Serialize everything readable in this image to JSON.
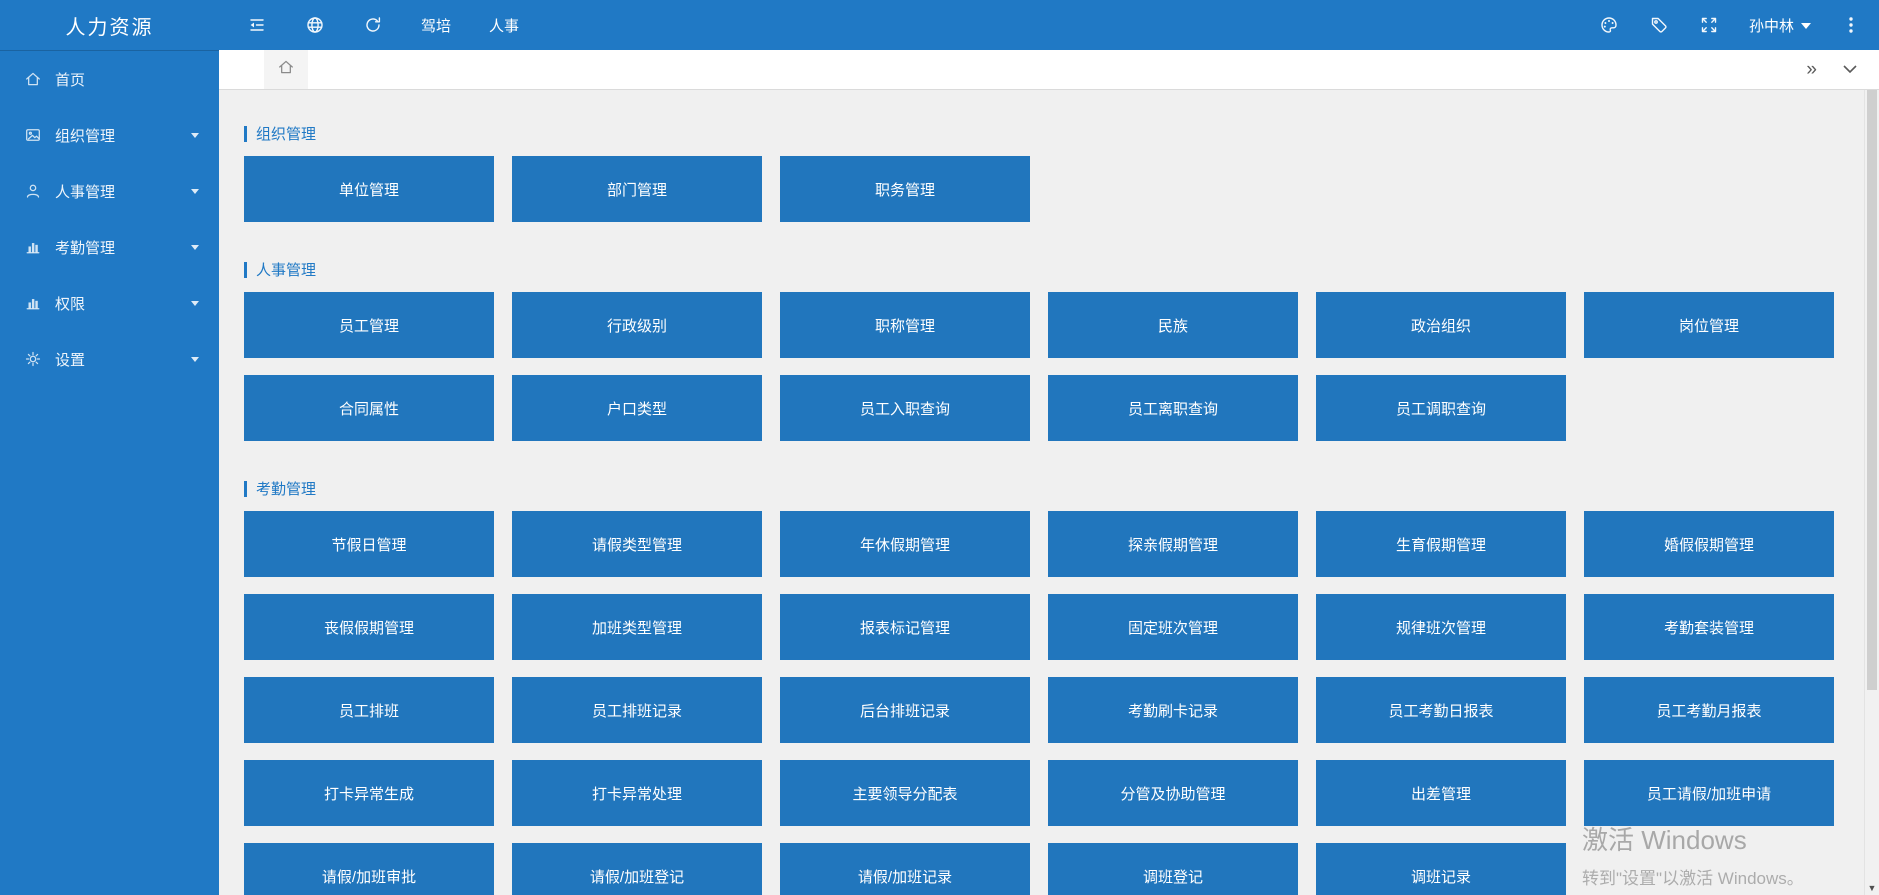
{
  "app": {
    "title": "人力资源"
  },
  "colors": {
    "primary": "#2079c5",
    "tile": "#2176bd",
    "content_bg": "#f0f0f0"
  },
  "topbar": {
    "left_icons": [
      "collapse",
      "globe",
      "refresh"
    ],
    "nav_items": [
      "驾培",
      "人事"
    ],
    "right_icons": [
      "palette",
      "tag",
      "fullscreen"
    ],
    "user": "孙中林"
  },
  "sidebar": {
    "items": [
      {
        "id": "home",
        "label": "首页",
        "icon": "home",
        "has_children": false
      },
      {
        "id": "org",
        "label": "组织管理",
        "icon": "image",
        "has_children": true
      },
      {
        "id": "hr",
        "label": "人事管理",
        "icon": "user",
        "has_children": true
      },
      {
        "id": "attendance",
        "label": "考勤管理",
        "icon": "chart",
        "has_children": true
      },
      {
        "id": "permission",
        "label": "权限",
        "icon": "chart",
        "has_children": true
      },
      {
        "id": "settings",
        "label": "设置",
        "icon": "gear",
        "has_children": true
      }
    ]
  },
  "tabs": {
    "active_icon": "home"
  },
  "sections": [
    {
      "title": "组织管理",
      "buttons": [
        "单位管理",
        "部门管理",
        "职务管理"
      ]
    },
    {
      "title": "人事管理",
      "buttons": [
        "员工管理",
        "行政级别",
        "职称管理",
        "民族",
        "政治组织",
        "岗位管理",
        "合同属性",
        "户口类型",
        "员工入职查询",
        "员工离职查询",
        "员工调职查询"
      ]
    },
    {
      "title": "考勤管理",
      "buttons": [
        "节假日管理",
        "请假类型管理",
        "年休假期管理",
        "探亲假期管理",
        "生育假期管理",
        "婚假假期管理",
        "丧假假期管理",
        "加班类型管理",
        "报表标记管理",
        "固定班次管理",
        "规律班次管理",
        "考勤套装管理",
        "员工排班",
        "员工排班记录",
        "后台排班记录",
        "考勤刷卡记录",
        "员工考勤日报表",
        "员工考勤月报表",
        "打卡异常生成",
        "打卡异常处理",
        "主要领导分配表",
        "分管及协助管理",
        "出差管理",
        "员工请假/加班申请",
        "请假/加班审批",
        "请假/加班登记",
        "请假/加班记录",
        "调班登记",
        "调班记录"
      ]
    }
  ],
  "watermark": {
    "line1": "激活 Windows",
    "line2": "转到\"设置\"以激活 Windows。"
  }
}
